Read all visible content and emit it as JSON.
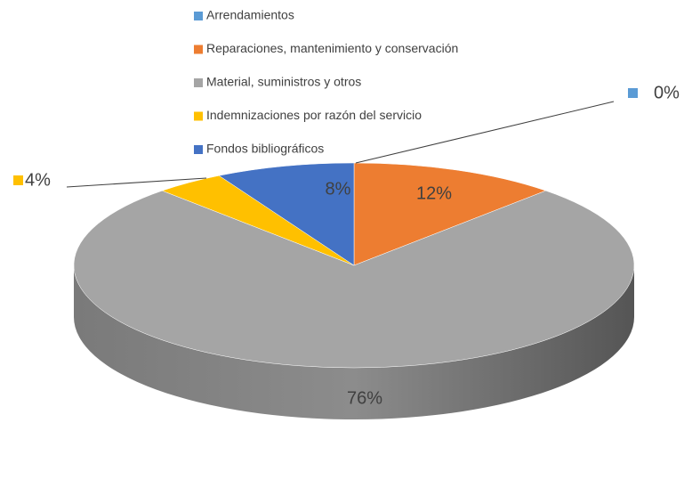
{
  "chart_data": {
    "type": "pie",
    "categories": [
      "Arrendamientos",
      "Reparaciones, mantenimiento y conservación",
      "Material, suministros y otros",
      "Indemnizaciones por razón del servicio",
      "Fondos bibliográficos"
    ],
    "values": [
      0,
      12,
      76,
      4,
      8
    ],
    "value_labels": [
      "0%",
      "12%",
      "76%",
      "4%",
      "8%"
    ],
    "colors": [
      "#5b9bd5",
      "#ed7d31",
      "#a5a5a5",
      "#ffc000",
      "#4472c4"
    ],
    "legend": "top"
  }
}
